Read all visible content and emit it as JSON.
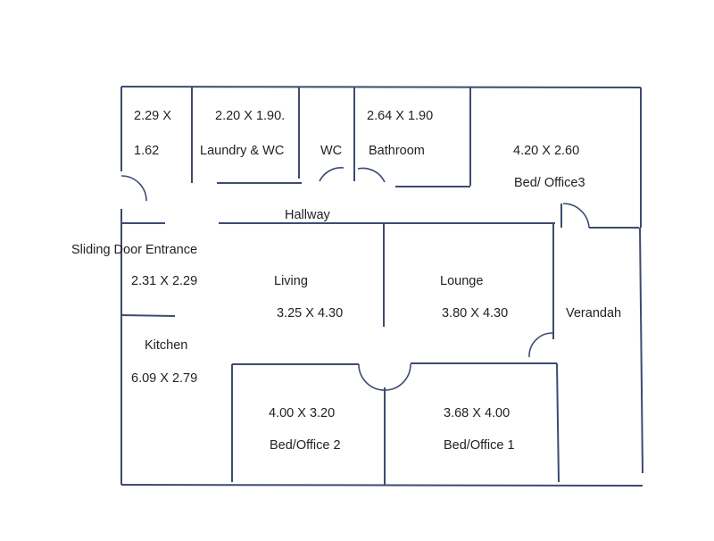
{
  "rooms": {
    "store": {
      "dims_line1": "2.29 X",
      "dims_line2": "1.62"
    },
    "laundry": {
      "dims": "2.20 X 1.90.",
      "name": "Laundry & WC"
    },
    "wc": {
      "name": "WC"
    },
    "bathroom": {
      "dims": "2.64 X 1.90",
      "name": "Bathroom"
    },
    "bed3": {
      "dims": "4.20 X 2.60",
      "name": "Bed/ Office3"
    },
    "hallway": {
      "name": "Hallway"
    },
    "entrance": {
      "name": "Sliding Door Entrance",
      "dims": "2.31 X 2.29"
    },
    "living": {
      "name": "Living",
      "dims": "3.25 X 4.30"
    },
    "lounge": {
      "name": "Lounge",
      "dims": "3.80 X 4.30"
    },
    "verandah": {
      "name": "Verandah"
    },
    "kitchen": {
      "name": "Kitchen",
      "dims": "6.09 X 2.79"
    },
    "bed2": {
      "dims": "4.00 X 3.20",
      "name": "Bed/Office 2"
    },
    "bed1": {
      "dims": "3.68 X 4.00",
      "name": "Bed/Office 1"
    }
  },
  "colors": {
    "wall": "#3e4a70",
    "text": "#222222"
  }
}
